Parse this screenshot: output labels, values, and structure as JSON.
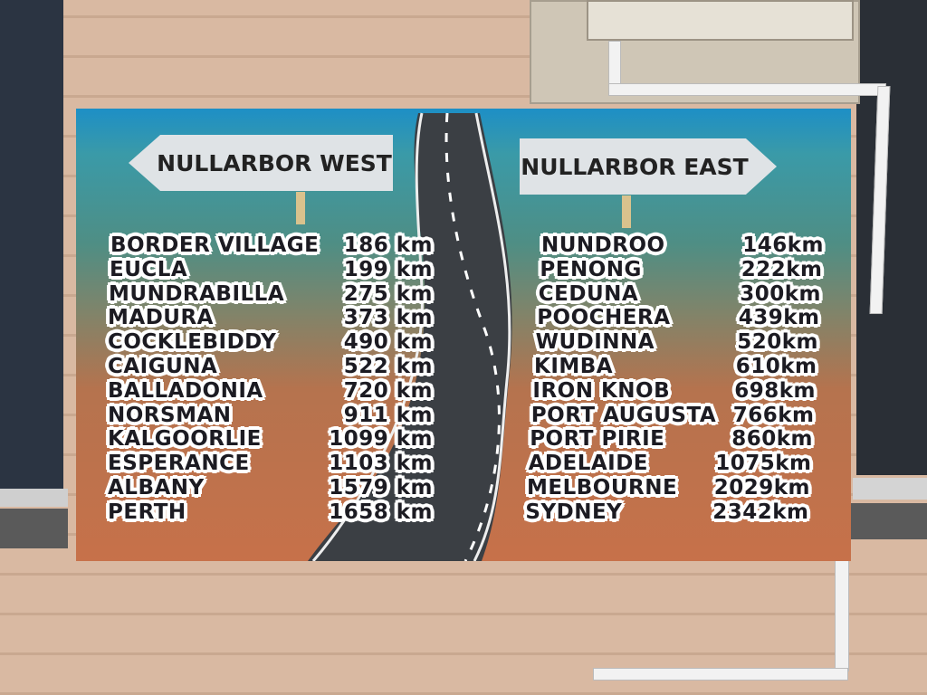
{
  "sign": {
    "west": {
      "title": "NULLARBOR WEST",
      "rows": [
        {
          "place": "BORDER VILLAGE",
          "distance": "186 km"
        },
        {
          "place": "EUCLA",
          "distance": "199 km"
        },
        {
          "place": "MUNDRABILLA",
          "distance": "275 km"
        },
        {
          "place": "MADURA",
          "distance": "373 km"
        },
        {
          "place": "COCKLEBIDDY",
          "distance": "490 km"
        },
        {
          "place": "CAIGUNA",
          "distance": "522 km"
        },
        {
          "place": "BALLADONIA",
          "distance": "720 km"
        },
        {
          "place": "NORSMAN",
          "distance": "911 km"
        },
        {
          "place": "KALGOORLIE",
          "distance": "1099 km"
        },
        {
          "place": "ESPERANCE",
          "distance": "1103 km"
        },
        {
          "place": "ALBANY",
          "distance": "1579 km"
        },
        {
          "place": "PERTH",
          "distance": "1658 km"
        }
      ]
    },
    "east": {
      "title": "NULLARBOR EAST",
      "rows": [
        {
          "place": "NUNDROO",
          "distance": "146km"
        },
        {
          "place": "PENONG",
          "distance": "222km"
        },
        {
          "place": "CEDUNA",
          "distance": "300km"
        },
        {
          "place": "POOCHERA",
          "distance": "439km"
        },
        {
          "place": "WUDINNA",
          "distance": "520km"
        },
        {
          "place": "KIMBA",
          "distance": "610km"
        },
        {
          "place": "IRON KNOB",
          "distance": "698km"
        },
        {
          "place": "PORT AUGUSTA",
          "distance": "766km"
        },
        {
          "place": "PORT PIRIE",
          "distance": "860km"
        },
        {
          "place": "ADELAIDE",
          "distance": "1075km"
        },
        {
          "place": "MELBOURNE",
          "distance": "2029km"
        },
        {
          "place": "SYDNEY",
          "distance": "2342km"
        }
      ]
    }
  }
}
